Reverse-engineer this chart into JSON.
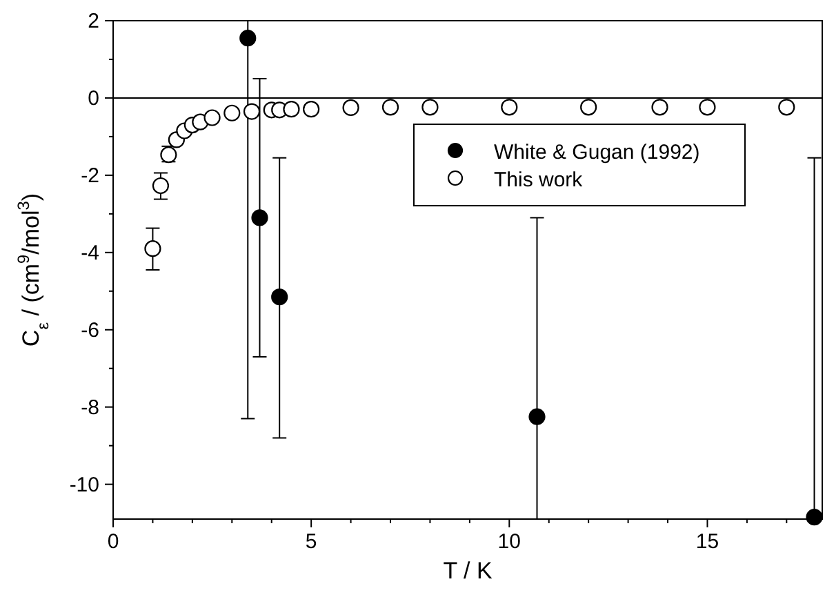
{
  "chart_data": {
    "type": "scatter",
    "xlabel": "T / K",
    "ylabel": "C$_{ε}$ / (cm$^{9}$/mol$^{3}$)",
    "xlim": [
      0,
      17.9
    ],
    "ylim": [
      -10.9,
      2
    ],
    "xticks": [
      0,
      {
        "value": 1,
        "label": null
      },
      {
        "value": 2,
        "label": null
      },
      {
        "value": 3,
        "label": null
      },
      {
        "value": 4,
        "label": null
      },
      5,
      {
        "value": 6,
        "label": null
      },
      {
        "value": 7,
        "label": null
      },
      {
        "value": 8,
        "label": null
      },
      {
        "value": 9,
        "label": null
      },
      10,
      {
        "value": 11,
        "label": null
      },
      {
        "value": 12,
        "label": null
      },
      {
        "value": 13,
        "label": null
      },
      {
        "value": 14,
        "label": null
      },
      15,
      {
        "value": 16,
        "label": null
      },
      {
        "value": 17,
        "label": null
      }
    ],
    "yticks": [
      2,
      {
        "value": 1,
        "label": null
      },
      0,
      {
        "value": -1,
        "label": null
      },
      -2,
      {
        "value": -3,
        "label": null
      },
      -4,
      {
        "value": -5,
        "label": null
      },
      -6,
      {
        "value": -7,
        "label": null
      },
      -8,
      {
        "value": -9,
        "label": null
      },
      -10
    ],
    "ref_lines": [
      {
        "axis": "y",
        "value": 0,
        "color": "#000000"
      }
    ],
    "legend": "top right",
    "grid": false,
    "marker": "circle",
    "series": [
      {
        "name": "White & Gugan (1992)",
        "color": "#000000",
        "x": [
          3.4,
          3.7,
          4.2,
          10.7,
          17.7
        ],
        "values": [
          1.55,
          -3.1,
          -5.15,
          -8.25,
          -10.85
        ],
        "errors": [
          [
            -8.3,
            2
          ],
          [
            -6.7,
            0.5
          ],
          [
            -8.8,
            -1.55
          ],
          [
            -10.9,
            -3.1
          ],
          [
            -10.9,
            -1.55
          ]
        ]
      },
      {
        "name": "This work",
        "color": "#ffffff",
        "x": [
          1.0,
          1.2,
          1.4,
          1.6,
          1.8,
          2.0,
          2.2,
          2.5,
          3.0,
          3.5,
          4.0,
          4.2,
          4.5,
          5.0,
          6.0,
          7.0,
          8.0,
          10.0,
          12.0,
          13.8,
          15.0,
          17.0
        ],
        "values": [
          -3.9,
          -2.27,
          -1.47,
          -1.08,
          -0.85,
          -0.7,
          -0.62,
          -0.51,
          -0.39,
          -0.35,
          -0.31,
          -0.31,
          -0.29,
          -0.29,
          -0.25,
          -0.24,
          -0.24,
          -0.24,
          -0.24,
          -0.24,
          -0.24,
          -0.24
        ],
        "errors": [
          [
            -4.45,
            -3.37
          ],
          [
            -2.62,
            -1.94
          ],
          [
            -1.65,
            -1.25
          ],
          null,
          null,
          null,
          null,
          null,
          null,
          null,
          null,
          null,
          null,
          null,
          null,
          null,
          null,
          null,
          null,
          null,
          null,
          null
        ]
      }
    ]
  }
}
